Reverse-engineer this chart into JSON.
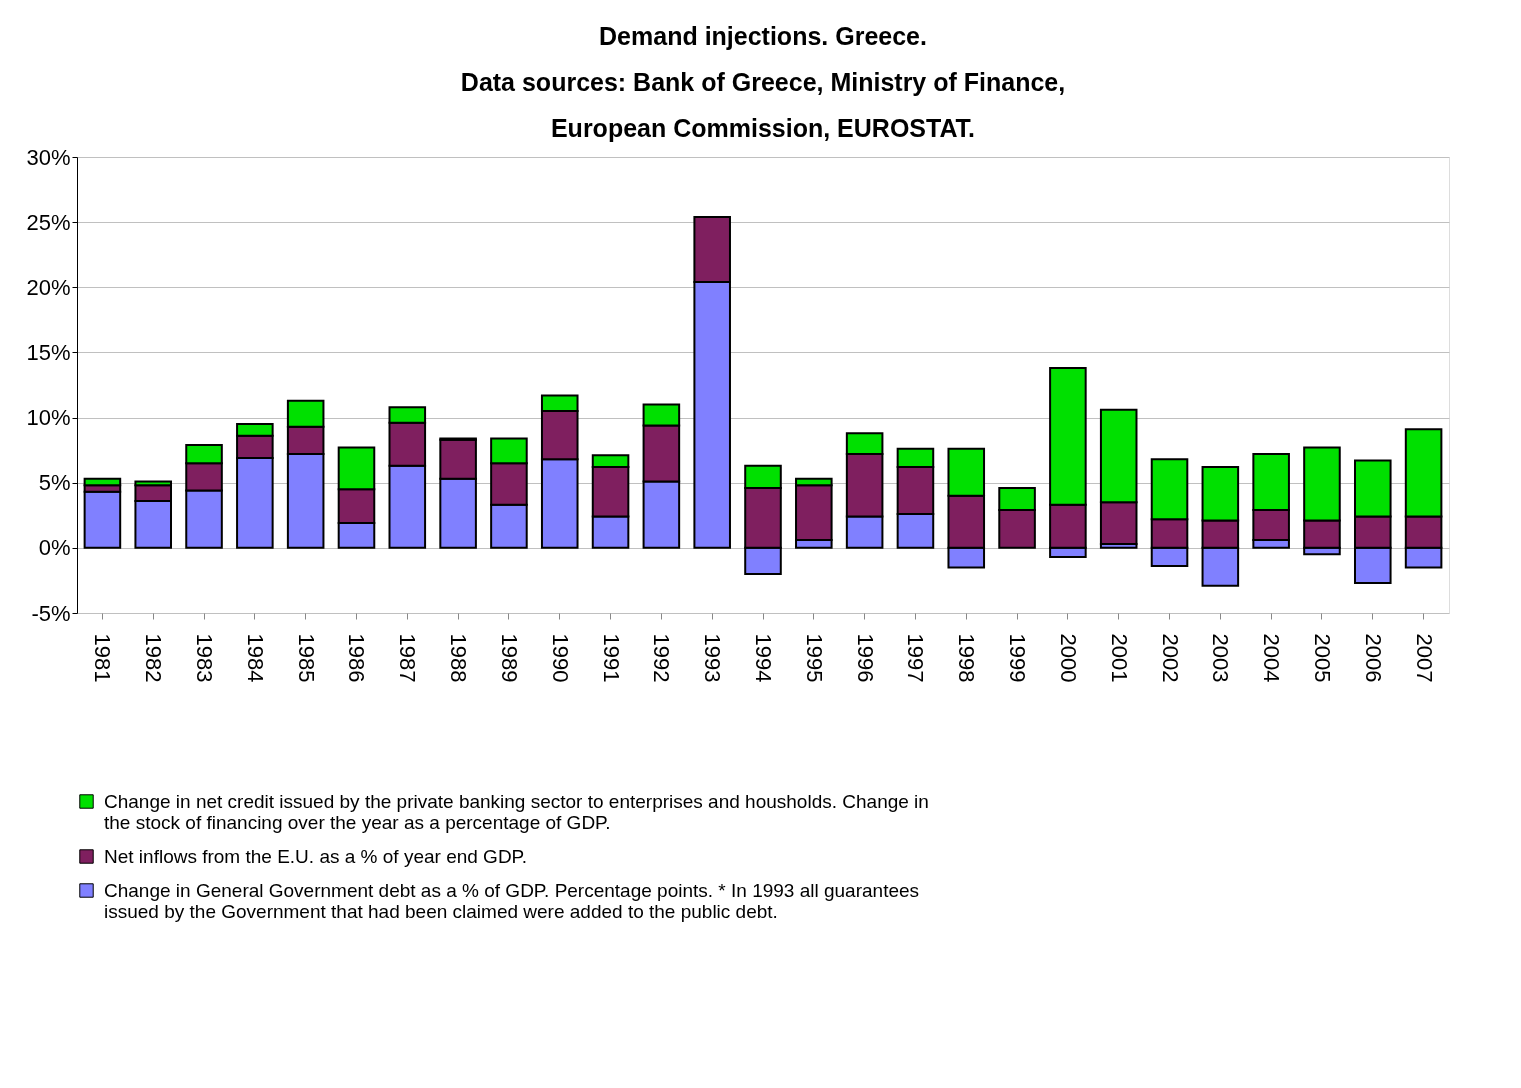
{
  "chart_data": {
    "type": "bar",
    "stacked": true,
    "title": "Demand injections. Greece.",
    "subtitle": "Data sources: Bank of Greece, Ministry of Finance, European Commission, EUROSTAT.",
    "categories": [
      "1981",
      "1982",
      "1983",
      "1984",
      "1985",
      "1986",
      "1987",
      "1988",
      "1989",
      "1990",
      "1991",
      "1992",
      "1993",
      "1994",
      "1995",
      "1996",
      "1997",
      "1998",
      "1999",
      "2000",
      "2001",
      "2002",
      "2003",
      "2004",
      "2005",
      "2006",
      "2007"
    ],
    "series": [
      {
        "name": "Change in General Government debt as a % of GDP. Percentage points. * In 1993 all guarantees issued by the Government that had been claimed were added to the public debt.",
        "color": "#8080ff",
        "values": [
          4.3,
          3.6,
          4.4,
          6.9,
          7.2,
          1.9,
          6.3,
          5.3,
          3.3,
          6.8,
          2.4,
          5.1,
          20.4,
          -2.0,
          0.6,
          2.4,
          2.6,
          -1.5,
          null,
          -0.7,
          0.3,
          -1.4,
          -2.9,
          0.6,
          -0.5,
          -2.7,
          -1.5
        ]
      },
      {
        "name": "Net inflows from the E.U. as a % of year end GDP.",
        "color": "#7f1f5f",
        "values": [
          0.5,
          1.2,
          2.1,
          1.7,
          2.1,
          2.6,
          3.3,
          3.0,
          3.2,
          3.7,
          3.8,
          4.3,
          5.0,
          4.6,
          4.2,
          4.8,
          3.6,
          4.0,
          2.9,
          3.3,
          3.2,
          2.2,
          2.1,
          2.3,
          2.1,
          2.4,
          2.4
        ]
      },
      {
        "name": "Change in net credit issued by the private banking sector to enterprises and housholds. Change in the stock of financing over the year as a percentage of GDP.",
        "color": "#00e000",
        "values": [
          0.5,
          0.3,
          1.4,
          0.9,
          2.0,
          3.2,
          1.2,
          0.1,
          1.9,
          1.2,
          0.9,
          1.6,
          null,
          1.7,
          0.5,
          1.6,
          1.4,
          3.6,
          1.7,
          10.5,
          7.1,
          4.6,
          4.1,
          4.3,
          5.6,
          4.3,
          6.7
        ]
      }
    ],
    "ylim": [
      -5,
      30
    ],
    "yticks": [
      {
        "value": -5,
        "label": "-5%"
      },
      {
        "value": 0,
        "label": "0%"
      },
      {
        "value": 5,
        "label": "5%"
      },
      {
        "value": 10,
        "label": "10%"
      },
      {
        "value": 15,
        "label": "15%"
      },
      {
        "value": 20,
        "label": "20%"
      },
      {
        "value": 25,
        "label": "25%"
      },
      {
        "value": 30,
        "label": "30%"
      }
    ],
    "grid": "y",
    "legend": "bottom"
  }
}
